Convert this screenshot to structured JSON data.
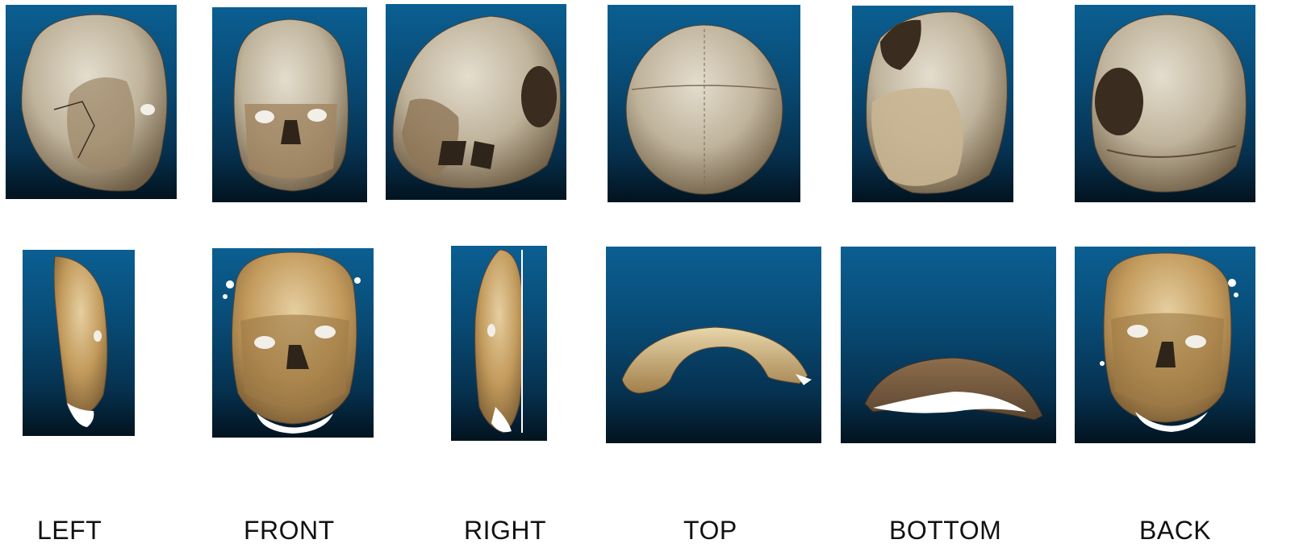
{
  "views": {
    "left": {
      "label": "LEFT"
    },
    "front": {
      "label": "FRONT"
    },
    "right": {
      "label": "RIGHT"
    },
    "top": {
      "label": "TOP"
    },
    "bottom": {
      "label": "BOTTOM"
    },
    "back": {
      "label": "BACK"
    }
  },
  "colors": {
    "panel_top": "#0b5f92",
    "panel_bottom": "#02131f",
    "bone_light": "#d9d2c3",
    "bone_dark": "#8a7355",
    "plaster_face": "#c9a56a"
  }
}
